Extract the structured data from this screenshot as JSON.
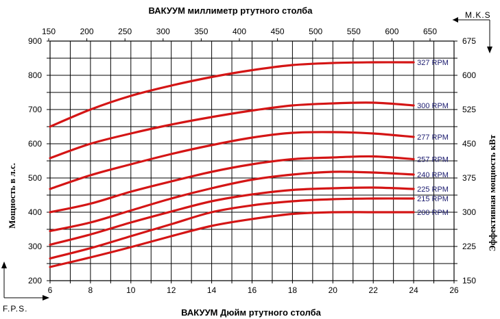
{
  "chart_data": {
    "type": "line",
    "title_top": "ВАКУУМ миллиметр ртутного столба",
    "title_bottom": "ВАКУУМ Дюйм ртутного столба",
    "ylabel_left": "Мощность в л.с.",
    "ylabel_right": "Эффективная мощность   кВт",
    "unit_top_right": "M.K.S",
    "unit_bottom_left": "F.P.S.",
    "xlim": [
      6,
      26
    ],
    "ylim": [
      200,
      900
    ],
    "x_ticks_bottom": [
      "6",
      "8",
      "10",
      "12",
      "14",
      "16",
      "18",
      "20",
      "22",
      "24",
      "26"
    ],
    "x_ticks_top": [
      "150",
      "200",
      "250",
      "300",
      "350",
      "400",
      "450",
      "500",
      "550",
      "600",
      "650"
    ],
    "y_ticks_left": [
      "200",
      "300",
      "400",
      "500",
      "600",
      "700",
      "800",
      "900"
    ],
    "y_ticks_right": [
      "150",
      "225",
      "300",
      "375",
      "450",
      "525",
      "600",
      "675"
    ],
    "grid": true,
    "series": [
      {
        "name": "327 RPM",
        "x": [
          6,
          8,
          10,
          12,
          14,
          16,
          18,
          20,
          22,
          24
        ],
        "y": [
          650,
          700,
          740,
          770,
          795,
          815,
          830,
          836,
          838,
          838
        ]
      },
      {
        "name": "300 RPM",
        "x": [
          6,
          8,
          10,
          12,
          14,
          16,
          18,
          20,
          22,
          24
        ],
        "y": [
          558,
          600,
          630,
          656,
          678,
          697,
          712,
          718,
          720,
          712
        ]
      },
      {
        "name": "277 RPM",
        "x": [
          6,
          8,
          10,
          12,
          14,
          16,
          18,
          20,
          22,
          24
        ],
        "y": [
          468,
          508,
          540,
          570,
          596,
          618,
          632,
          634,
          630,
          620
        ]
      },
      {
        "name": "257 RPM",
        "x": [
          6,
          8,
          10,
          12,
          14,
          16,
          18,
          20,
          22,
          24
        ],
        "y": [
          400,
          425,
          460,
          490,
          518,
          540,
          555,
          560,
          563,
          555
        ]
      },
      {
        "name": "240 RPM",
        "x": [
          6,
          8,
          10,
          12,
          14,
          16,
          18,
          20,
          22,
          24
        ],
        "y": [
          345,
          370,
          405,
          440,
          470,
          495,
          510,
          518,
          516,
          510
        ]
      },
      {
        "name": "225 RPM",
        "x": [
          6,
          8,
          10,
          12,
          14,
          16,
          18,
          20,
          22,
          24
        ],
        "y": [
          305,
          335,
          370,
          402,
          432,
          452,
          465,
          470,
          472,
          468
        ]
      },
      {
        "name": "215 RPM",
        "x": [
          6,
          8,
          10,
          12,
          14,
          16,
          18,
          20,
          22,
          24
        ],
        "y": [
          265,
          295,
          330,
          365,
          400,
          420,
          432,
          438,
          440,
          440
        ]
      },
      {
        "name": "200 RPM",
        "x": [
          6,
          8,
          10,
          12,
          14,
          16,
          18,
          20,
          22,
          24
        ],
        "y": [
          240,
          268,
          298,
          330,
          360,
          380,
          395,
          400,
          400,
          400
        ]
      }
    ]
  }
}
